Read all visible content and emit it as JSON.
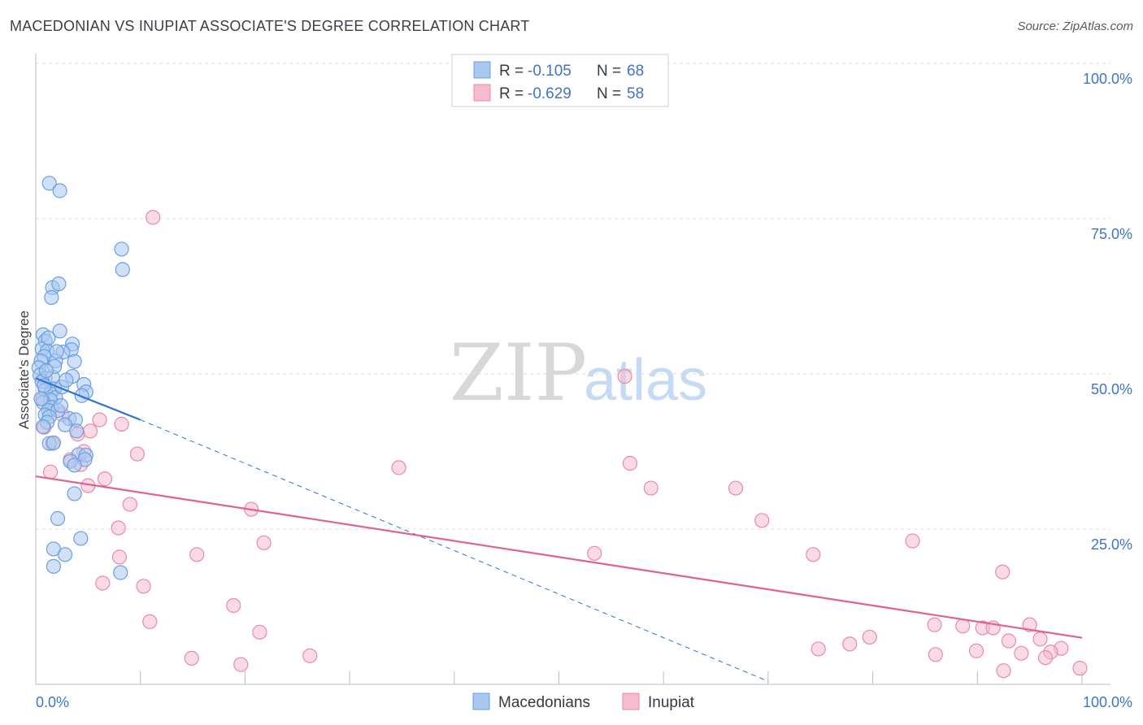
{
  "title": "MACEDONIAN VS INUPIAT ASSOCIATE'S DEGREE CORRELATION CHART",
  "source": "Source: ZipAtlas.com",
  "colors": {
    "blue_fill": "#a9c8f0",
    "blue_stroke": "#6b9fe0",
    "blue_line": "#2f73d1",
    "pink_fill": "#f6bccd",
    "pink_stroke": "#ea8aa7",
    "pink_line": "#e0628e",
    "axis_label": "#3f74c9",
    "grid": "#dddddd"
  },
  "legend": {
    "entries": [
      {
        "r_label": "R =",
        "r_value": "-0.105",
        "n_label": "N =",
        "n_value": "68"
      },
      {
        "r_label": "R =",
        "r_value": "-0.629",
        "n_label": "N =",
        "n_value": "58"
      }
    ]
  },
  "watermark": {
    "zip": "ZIP",
    "atlas": "atlas"
  },
  "chart_data": {
    "type": "scatter",
    "ylabel": "Associate's Degree",
    "x_ticks": [
      "0.0%",
      "100.0%"
    ],
    "y_ticks": [
      "100.0%",
      "75.0%",
      "50.0%",
      "25.0%"
    ],
    "xlim": [
      0,
      100
    ],
    "ylim": [
      0,
      100
    ],
    "series": [
      {
        "name": "Macedonians",
        "trend": {
          "x0": 0,
          "y0": 49.3,
          "x1": 10,
          "y1": 42.6,
          "x_dash_end": 70,
          "y_dash_end": 0.5
        },
        "points": [
          [
            1.3,
            80.7
          ],
          [
            2.3,
            79.5
          ],
          [
            8.2,
            70.1
          ],
          [
            8.3,
            66.8
          ],
          [
            1.6,
            63.9
          ],
          [
            2.2,
            64.5
          ],
          [
            1.5,
            62.3
          ],
          [
            0.7,
            56.3
          ],
          [
            2.3,
            56.9
          ],
          [
            0.9,
            55.3
          ],
          [
            3.5,
            54.8
          ],
          [
            0.6,
            54.0
          ],
          [
            1.1,
            53.7
          ],
          [
            3.4,
            53.9
          ],
          [
            0.8,
            52.8
          ],
          [
            2.6,
            53.5
          ],
          [
            0.5,
            52.1
          ],
          [
            1.9,
            52.1
          ],
          [
            3.7,
            52.0
          ],
          [
            0.3,
            51.0
          ],
          [
            0.4,
            49.8
          ],
          [
            0.9,
            49.3
          ],
          [
            1.6,
            49.5
          ],
          [
            3.5,
            49.6
          ],
          [
            0.6,
            48.8
          ],
          [
            4.6,
            48.3
          ],
          [
            1.8,
            47.6
          ],
          [
            0.9,
            47.4
          ],
          [
            4.8,
            47.1
          ],
          [
            1.4,
            46.8
          ],
          [
            4.4,
            46.5
          ],
          [
            1.9,
            46.2
          ],
          [
            1.4,
            45.8
          ],
          [
            0.7,
            45.4
          ],
          [
            1.5,
            44.6
          ],
          [
            1.2,
            44.1
          ],
          [
            2.1,
            44.1
          ],
          [
            0.9,
            43.4
          ],
          [
            1.3,
            43.1
          ],
          [
            3.2,
            42.8
          ],
          [
            3.8,
            42.6
          ],
          [
            1.1,
            42.2
          ],
          [
            2.8,
            41.8
          ],
          [
            1.3,
            38.8
          ],
          [
            1.7,
            38.9
          ],
          [
            4.1,
            37.0
          ],
          [
            4.8,
            36.9
          ],
          [
            4.7,
            36.2
          ],
          [
            3.3,
            35.9
          ],
          [
            3.7,
            35.3
          ],
          [
            3.7,
            30.7
          ],
          [
            2.1,
            26.7
          ],
          [
            4.3,
            23.5
          ],
          [
            1.7,
            21.8
          ],
          [
            2.8,
            20.9
          ],
          [
            1.7,
            19.0
          ],
          [
            8.1,
            18.0
          ],
          [
            2.0,
            53.6
          ],
          [
            1.8,
            51.2
          ],
          [
            0.8,
            48.1
          ],
          [
            2.5,
            47.9
          ],
          [
            1.0,
            50.5
          ],
          [
            2.9,
            49.0
          ],
          [
            0.5,
            46.0
          ],
          [
            1.2,
            55.8
          ],
          [
            2.4,
            44.9
          ],
          [
            3.9,
            40.8
          ],
          [
            0.7,
            41.5
          ]
        ]
      },
      {
        "name": "Inupiat",
        "trend": {
          "x0": 0,
          "y0": 33.5,
          "x1": 100,
          "y1": 7.5
        },
        "points": [
          [
            11.2,
            75.2
          ],
          [
            56.3,
            49.6
          ],
          [
            0.7,
            46.0
          ],
          [
            2.5,
            43.5
          ],
          [
            6.1,
            42.6
          ],
          [
            8.2,
            41.9
          ],
          [
            0.8,
            41.4
          ],
          [
            5.2,
            40.8
          ],
          [
            4.0,
            40.3
          ],
          [
            1.6,
            38.8
          ],
          [
            4.6,
            37.5
          ],
          [
            9.7,
            37.1
          ],
          [
            3.3,
            36.2
          ],
          [
            4.3,
            35.4
          ],
          [
            34.7,
            34.9
          ],
          [
            56.8,
            35.6
          ],
          [
            1.4,
            34.2
          ],
          [
            6.6,
            33.1
          ],
          [
            5.0,
            32.0
          ],
          [
            58.8,
            31.6
          ],
          [
            66.9,
            31.6
          ],
          [
            9.0,
            29.0
          ],
          [
            20.6,
            28.2
          ],
          [
            69.4,
            26.4
          ],
          [
            7.9,
            25.2
          ],
          [
            21.8,
            22.8
          ],
          [
            83.8,
            23.1
          ],
          [
            15.4,
            20.9
          ],
          [
            8.0,
            20.5
          ],
          [
            53.4,
            21.1
          ],
          [
            74.3,
            20.9
          ],
          [
            92.4,
            18.1
          ],
          [
            6.4,
            16.3
          ],
          [
            10.3,
            15.8
          ],
          [
            18.9,
            12.7
          ],
          [
            10.9,
            10.1
          ],
          [
            21.4,
            8.4
          ],
          [
            79.7,
            7.6
          ],
          [
            77.8,
            6.5
          ],
          [
            74.8,
            5.7
          ],
          [
            85.9,
            9.6
          ],
          [
            88.6,
            9.4
          ],
          [
            90.5,
            9.1
          ],
          [
            91.5,
            9.1
          ],
          [
            95.0,
            9.6
          ],
          [
            93.0,
            7.0
          ],
          [
            94.2,
            5.0
          ],
          [
            89.9,
            5.4
          ],
          [
            86.0,
            4.8
          ],
          [
            98.0,
            5.8
          ],
          [
            96.0,
            7.3
          ],
          [
            97.0,
            5.2
          ],
          [
            96.5,
            4.3
          ],
          [
            14.9,
            4.2
          ],
          [
            26.2,
            4.6
          ],
          [
            19.6,
            3.2
          ],
          [
            92.5,
            2.2
          ],
          [
            99.8,
            2.6
          ]
        ]
      }
    ]
  }
}
